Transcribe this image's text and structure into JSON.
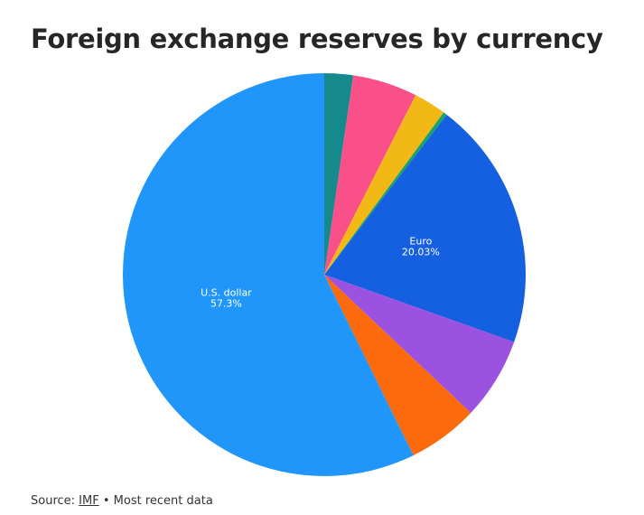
{
  "title": "Foreign exchange reserves by currency",
  "footer": {
    "source_label": "Source:",
    "source_link": "IMF",
    "separator": "•",
    "note": "Most recent data"
  },
  "chart_data": {
    "type": "pie",
    "title": "Foreign exchange reserves by currency",
    "start_angle_deg": 0,
    "direction": "clockwise",
    "slices": [
      {
        "label": "",
        "value": 2.3,
        "color": "#148a8c",
        "show_label": false
      },
      {
        "label": "",
        "value": 5.2,
        "color": "#f9508a",
        "show_label": false
      },
      {
        "label": "",
        "value": 2.6,
        "color": "#f2b816",
        "show_label": false
      },
      {
        "label": "",
        "value": 0.3,
        "color": "#1ba36b",
        "show_label": false
      },
      {
        "label": "Euro",
        "value": 20.03,
        "value_label": "20.03%",
        "color": "#1560e0",
        "show_label": true
      },
      {
        "label": "",
        "value": 6.6,
        "color": "#9b52e0",
        "show_label": false
      },
      {
        "label": "",
        "value": 5.67,
        "color": "#fb6a0c",
        "show_label": false
      },
      {
        "label": "U.S. dollar",
        "value": 57.3,
        "value_label": "57.3%",
        "color": "#2196fa",
        "show_label": true
      }
    ]
  }
}
